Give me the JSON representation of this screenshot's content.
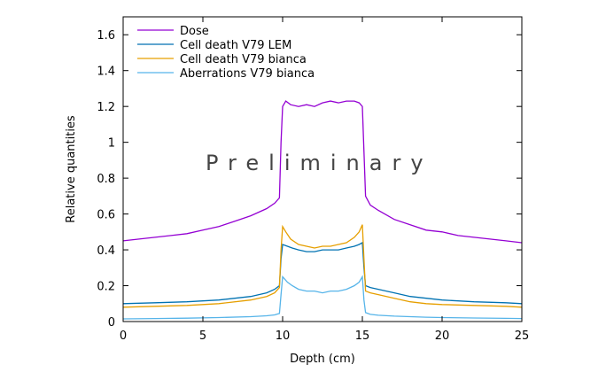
{
  "chart_data": {
    "type": "line",
    "xlabel": "Depth (cm)",
    "ylabel": "Relative quantities",
    "xlim": [
      0,
      25
    ],
    "ylim": [
      0,
      1.7
    ],
    "xticks": [
      0,
      5,
      10,
      15,
      20,
      25
    ],
    "yticks": [
      0,
      0.2,
      0.4,
      0.6,
      0.8,
      1,
      1.2,
      1.4,
      1.6
    ],
    "xtick_labels": [
      "0",
      "5",
      "10",
      "15",
      "20",
      "25"
    ],
    "ytick_labels": [
      "0",
      "0.2",
      "0.4",
      "0.6",
      "0.8",
      "1",
      "1.2",
      "1.4",
      "1.6"
    ],
    "grid": false,
    "legend_position": "top-left",
    "annotation": "Preliminary",
    "series": [
      {
        "name": "Dose",
        "color": "#9400d3",
        "x": [
          0,
          1,
          2,
          3,
          4,
          5,
          6,
          7,
          8,
          9,
          9.5,
          9.8,
          9.9,
          10,
          10.2,
          10.5,
          11,
          11.5,
          12,
          12.5,
          13,
          13.5,
          14,
          14.5,
          14.8,
          15,
          15.1,
          15.2,
          15.5,
          16,
          17,
          18,
          19,
          20,
          21,
          22,
          23,
          24,
          25
        ],
        "y": [
          0.45,
          0.46,
          0.47,
          0.48,
          0.49,
          0.51,
          0.53,
          0.56,
          0.59,
          0.63,
          0.66,
          0.69,
          1.0,
          1.2,
          1.23,
          1.21,
          1.2,
          1.21,
          1.2,
          1.22,
          1.23,
          1.22,
          1.23,
          1.23,
          1.22,
          1.2,
          0.95,
          0.7,
          0.65,
          0.62,
          0.57,
          0.54,
          0.51,
          0.5,
          0.48,
          0.47,
          0.46,
          0.45,
          0.44
        ]
      },
      {
        "name": "Cell death V79 LEM",
        "color": "#0072b2",
        "x": [
          0,
          2,
          4,
          6,
          8,
          9,
          9.5,
          9.8,
          9.9,
          10,
          10.3,
          10.6,
          11,
          11.5,
          12,
          12.5,
          13,
          13.5,
          14,
          14.5,
          14.8,
          15,
          15.1,
          15.2,
          15.5,
          16,
          17,
          18,
          19,
          20,
          22,
          24,
          25
        ],
        "y": [
          0.1,
          0.105,
          0.11,
          0.12,
          0.14,
          0.16,
          0.18,
          0.2,
          0.35,
          0.43,
          0.42,
          0.41,
          0.4,
          0.39,
          0.39,
          0.4,
          0.4,
          0.4,
          0.41,
          0.42,
          0.43,
          0.44,
          0.3,
          0.2,
          0.19,
          0.18,
          0.16,
          0.14,
          0.13,
          0.12,
          0.11,
          0.105,
          0.1
        ]
      },
      {
        "name": "Cell death V79 bianca",
        "color": "#e69f00",
        "x": [
          0,
          2,
          4,
          6,
          8,
          9,
          9.5,
          9.8,
          9.9,
          10,
          10.2,
          10.5,
          11,
          11.5,
          12,
          12.5,
          13,
          13.5,
          14,
          14.5,
          14.8,
          15,
          15.1,
          15.2,
          15.5,
          16,
          17,
          18,
          19,
          20,
          22,
          24,
          25
        ],
        "y": [
          0.08,
          0.085,
          0.09,
          0.1,
          0.12,
          0.14,
          0.16,
          0.19,
          0.4,
          0.53,
          0.5,
          0.46,
          0.43,
          0.42,
          0.41,
          0.42,
          0.42,
          0.43,
          0.44,
          0.47,
          0.5,
          0.54,
          0.35,
          0.17,
          0.16,
          0.15,
          0.13,
          0.11,
          0.1,
          0.095,
          0.09,
          0.085,
          0.08
        ]
      },
      {
        "name": "Aberrations V79 bianca",
        "color": "#56b4e9",
        "x": [
          0,
          2,
          4,
          6,
          8,
          9,
          9.5,
          9.8,
          9.9,
          10,
          10.3,
          10.6,
          11,
          11.5,
          12,
          12.5,
          13,
          13.5,
          14,
          14.5,
          14.8,
          15,
          15.1,
          15.2,
          15.5,
          16,
          17,
          18,
          19,
          20,
          22,
          24,
          25
        ],
        "y": [
          0.015,
          0.017,
          0.019,
          0.022,
          0.027,
          0.032,
          0.037,
          0.045,
          0.15,
          0.25,
          0.22,
          0.2,
          0.18,
          0.17,
          0.17,
          0.16,
          0.17,
          0.17,
          0.18,
          0.2,
          0.22,
          0.25,
          0.12,
          0.05,
          0.04,
          0.035,
          0.03,
          0.027,
          0.024,
          0.022,
          0.02,
          0.018,
          0.017
        ]
      }
    ]
  }
}
